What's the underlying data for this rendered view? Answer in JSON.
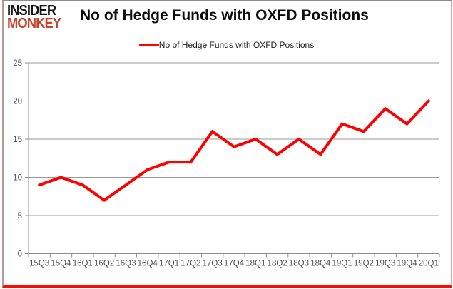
{
  "header": {
    "logo_line1": "INSIDER",
    "logo_line2": "MONKEY",
    "title": "No of Hedge Funds with OXFD Positions"
  },
  "legend": {
    "label": "No of Hedge Funds with OXFD Positions"
  },
  "chart_data": {
    "type": "line",
    "title": "No of Hedge Funds with OXFD Positions",
    "categories": [
      "15Q3",
      "15Q4",
      "16Q1",
      "16Q2",
      "16Q3",
      "16Q4",
      "17Q1",
      "17Q2",
      "17Q3",
      "17Q4",
      "18Q1",
      "18Q2",
      "18Q3",
      "18Q4",
      "19Q1",
      "19Q2",
      "19Q3",
      "19Q4",
      "20Q1"
    ],
    "series": [
      {
        "name": "No of Hedge Funds with OXFD Positions",
        "values": [
          9,
          10,
          9,
          7,
          9,
          11,
          12,
          12,
          16,
          14,
          15,
          13,
          15,
          13,
          17,
          16,
          19,
          17,
          20
        ],
        "color": "#fe0000"
      }
    ],
    "xlabel": "",
    "ylabel": "",
    "ylim": [
      0,
      25
    ],
    "ytick_step": 5,
    "grid": true,
    "legend_position": "top"
  },
  "colors": {
    "line": "#fe0000",
    "grid": "#9a9a9a",
    "axis": "#8c8c8c",
    "tick_label": "#4d4d4d",
    "logo_black": "#161616",
    "logo_red": "#c8432c",
    "frame_bottom": "#fb0e00"
  }
}
